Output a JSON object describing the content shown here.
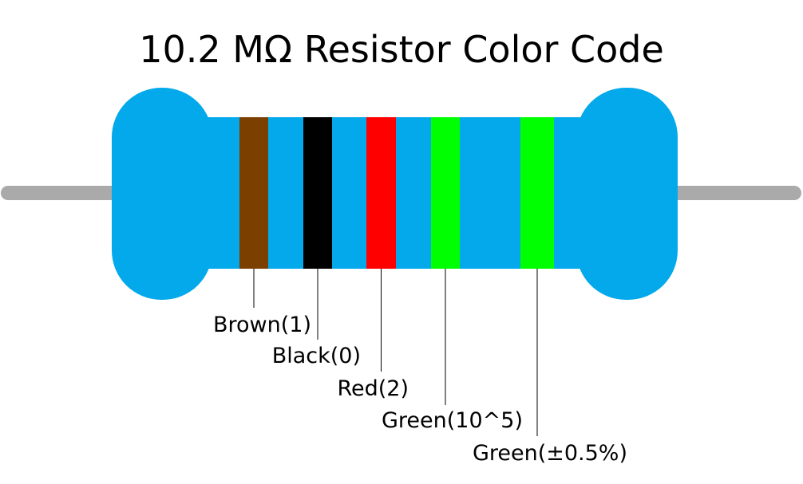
{
  "title": "10.2 MΩ Resistor Color Code",
  "bands": [
    {
      "label": "Brown(1)",
      "color": "#7b3f00"
    },
    {
      "label": "Black(0)",
      "color": "#000000"
    },
    {
      "label": "Red(2)",
      "color": "#ff0000"
    },
    {
      "label": "Green(10^5)",
      "color": "#00ff00"
    },
    {
      "label": "Green(±0.5%)",
      "color": "#00ff00"
    }
  ]
}
